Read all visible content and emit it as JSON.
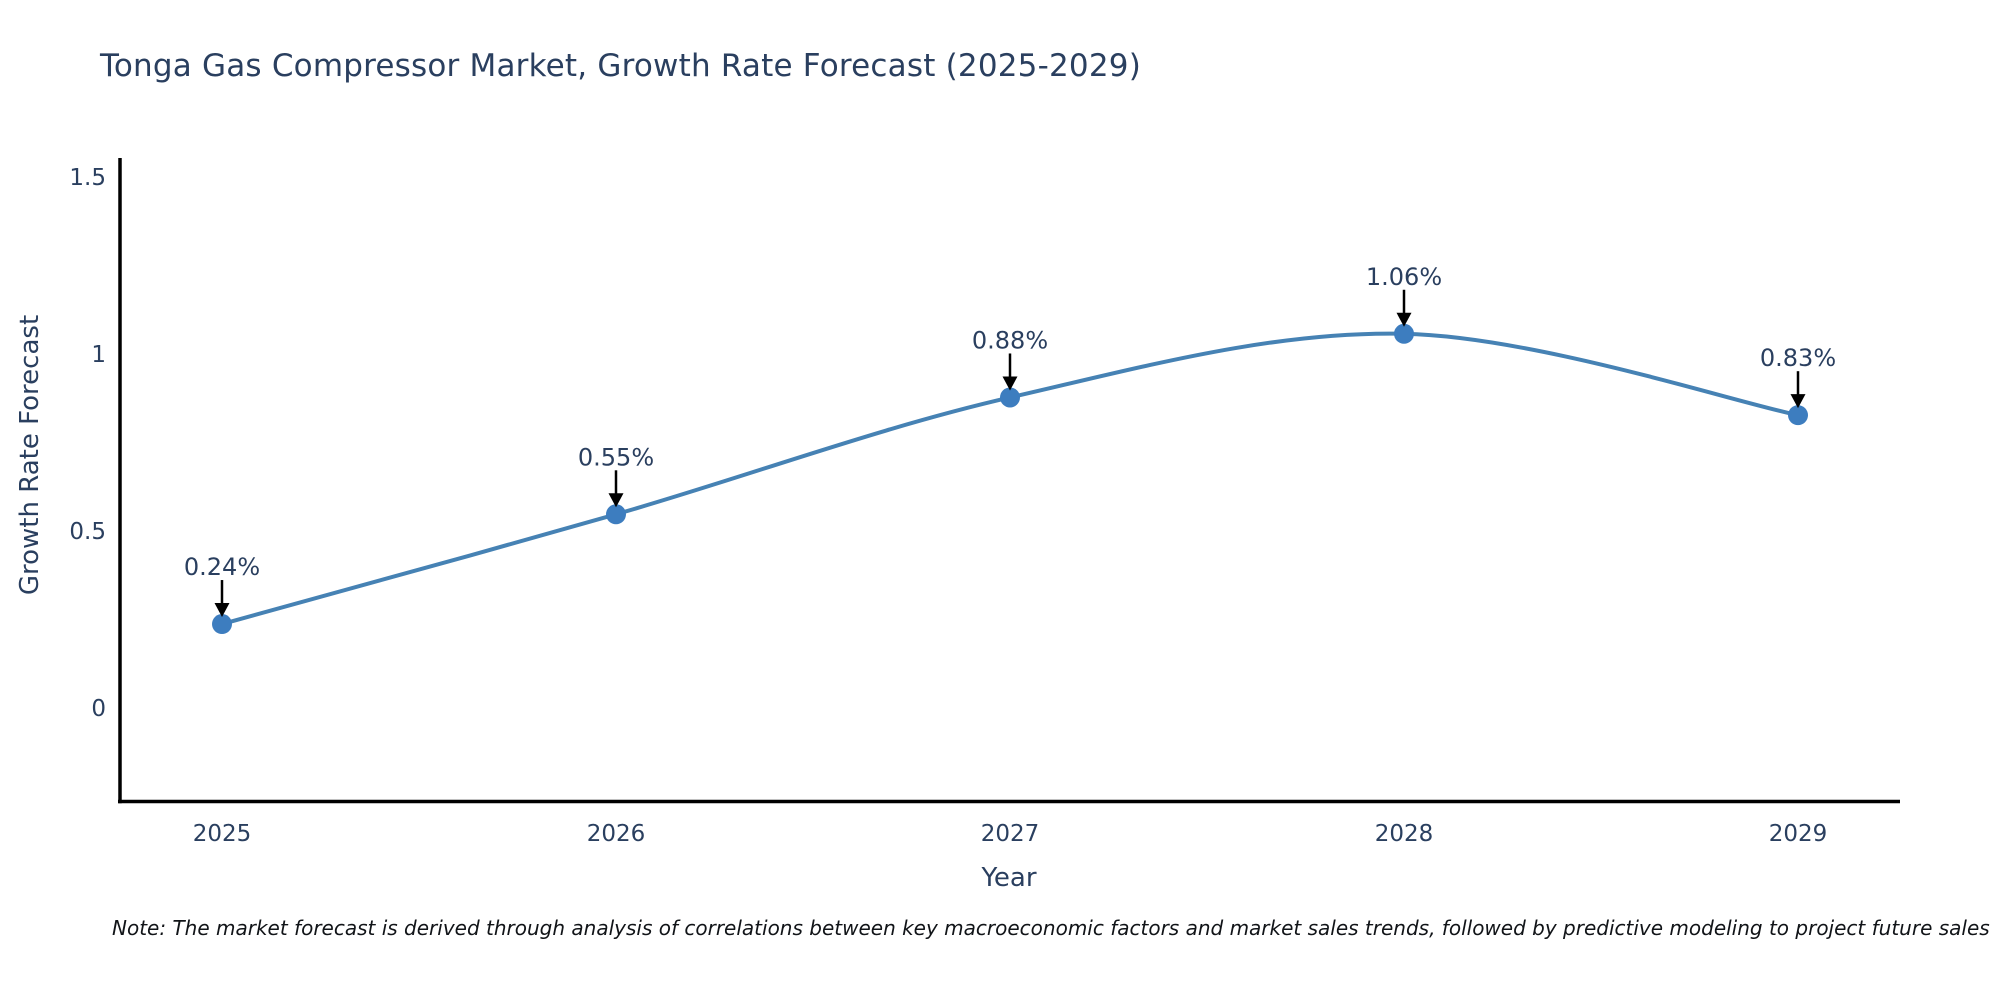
{
  "title": "Tonga Gas Compressor Market, Growth Rate Forecast (2025-2029)",
  "note": "Note: The market forecast is derived through analysis of correlations between key macroeconomic factors and market sales trends, followed by predictive modeling to project future sales",
  "chart_data": {
    "type": "line",
    "title": "Tonga Gas Compressor Market, Growth Rate Forecast (2025-2029)",
    "x": [
      2025,
      2026,
      2027,
      2028,
      2029
    ],
    "series": [
      {
        "name": "Growth Rate Forecast",
        "values": [
          0.24,
          0.55,
          0.88,
          1.06,
          0.83
        ]
      }
    ],
    "point_labels": [
      "0.24%",
      "0.55%",
      "0.88%",
      "1.06%",
      "0.83%"
    ],
    "xlabel": "Year",
    "ylabel": "Growth Rate Forecast",
    "xtick_labels": [
      "2025",
      "2026",
      "2027",
      "2028",
      "2029"
    ],
    "ytick_values": [
      0,
      0.5,
      1,
      1.5
    ],
    "ytick_labels": [
      "0",
      "0.5",
      "1",
      "1.5"
    ],
    "ylim": [
      -0.26,
      1.55
    ],
    "grid": false,
    "legend_position": "none",
    "line_smoothing": "spline",
    "colors": {
      "line": "#4682b4",
      "marker": "#3d7dbf",
      "axis": "#000000",
      "text": "#2a3f5f",
      "annotation_arrow": "#000000",
      "background": "#ffffff"
    }
  }
}
